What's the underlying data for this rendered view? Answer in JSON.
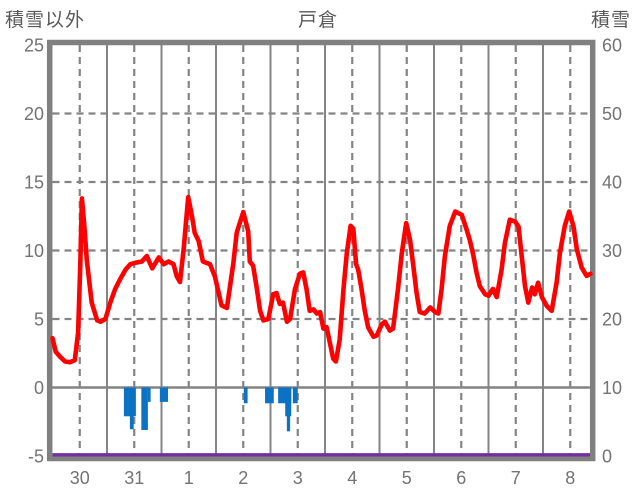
{
  "header": {
    "left_axis_title": "積雪以外",
    "title": "戸倉",
    "right_axis_title": "積雪"
  },
  "chart_data": {
    "type": "line",
    "title": "戸倉",
    "left_axis": {
      "label": "積雪以外",
      "range": [
        -5,
        25
      ],
      "ticks": [
        "25",
        "20",
        "15",
        "10",
        "5",
        "0",
        "-5"
      ]
    },
    "right_axis": {
      "label": "積雪",
      "range": [
        0,
        60
      ],
      "ticks": [
        "60",
        "50",
        "40",
        "30",
        "20",
        "10",
        "0"
      ]
    },
    "x_axis": {
      "tick_labels": [
        "30",
        "31",
        "1",
        "2",
        "3",
        "4",
        "5",
        "6",
        "7",
        "8"
      ],
      "days_visible": 9.87,
      "grid": "solid line at each day start, dashed line at each midday"
    },
    "grid": {
      "h_dashed_at": [
        20,
        15,
        10,
        5
      ],
      "h_solid_at": [
        0
      ],
      "color": "#848484"
    },
    "colors": {
      "red_line": "#fe0000",
      "blue_bars": "#0b72c4",
      "purple_line": "#7030a0",
      "frame": "#808080",
      "text": "#737373"
    },
    "series": [
      {
        "name": "red_line",
        "type": "line",
        "axis": "left",
        "color": "#fe0000",
        "points": [
          [
            0.0,
            3.6
          ],
          [
            0.06,
            2.6
          ],
          [
            0.14,
            2.25
          ],
          [
            0.23,
            1.9
          ],
          [
            0.32,
            1.85
          ],
          [
            0.41,
            2.0
          ],
          [
            0.47,
            4.0
          ],
          [
            0.51,
            9.0
          ],
          [
            0.54,
            13.8
          ],
          [
            0.58,
            12.0
          ],
          [
            0.63,
            9.3
          ],
          [
            0.72,
            6.2
          ],
          [
            0.82,
            4.9
          ],
          [
            0.88,
            4.8
          ],
          [
            0.97,
            5.0
          ],
          [
            1.06,
            6.2
          ],
          [
            1.15,
            7.2
          ],
          [
            1.24,
            7.9
          ],
          [
            1.34,
            8.6
          ],
          [
            1.43,
            9.0
          ],
          [
            1.52,
            9.1
          ],
          [
            1.64,
            9.2
          ],
          [
            1.73,
            9.6
          ],
          [
            1.83,
            8.7
          ],
          [
            1.95,
            9.5
          ],
          [
            2.04,
            9.0
          ],
          [
            2.13,
            9.2
          ],
          [
            2.22,
            9.0
          ],
          [
            2.28,
            8.1
          ],
          [
            2.34,
            7.7
          ],
          [
            2.41,
            10.2
          ],
          [
            2.49,
            13.9
          ],
          [
            2.56,
            12.5
          ],
          [
            2.61,
            11.3
          ],
          [
            2.68,
            10.7
          ],
          [
            2.76,
            9.2
          ],
          [
            2.89,
            9.0
          ],
          [
            2.98,
            8.1
          ],
          [
            3.1,
            6.0
          ],
          [
            3.2,
            5.8
          ],
          [
            3.32,
            9.1
          ],
          [
            3.38,
            11.3
          ],
          [
            3.5,
            12.8
          ],
          [
            3.59,
            11.4
          ],
          [
            3.62,
            9.2
          ],
          [
            3.68,
            8.9
          ],
          [
            3.75,
            7.2
          ],
          [
            3.81,
            5.6
          ],
          [
            3.87,
            4.9
          ],
          [
            3.96,
            5.0
          ],
          [
            4.05,
            6.8
          ],
          [
            4.11,
            6.9
          ],
          [
            4.17,
            6.1
          ],
          [
            4.23,
            6.2
          ],
          [
            4.3,
            4.8
          ],
          [
            4.36,
            5.0
          ],
          [
            4.45,
            7.2
          ],
          [
            4.54,
            8.3
          ],
          [
            4.6,
            8.4
          ],
          [
            4.66,
            7.2
          ],
          [
            4.72,
            5.6
          ],
          [
            4.79,
            5.7
          ],
          [
            4.85,
            5.4
          ],
          [
            4.91,
            5.5
          ],
          [
            4.97,
            4.3
          ],
          [
            5.03,
            4.4
          ],
          [
            5.15,
            2.1
          ],
          [
            5.2,
            1.9
          ],
          [
            5.27,
            3.5
          ],
          [
            5.34,
            7.2
          ],
          [
            5.4,
            9.8
          ],
          [
            5.47,
            11.8
          ],
          [
            5.52,
            11.6
          ],
          [
            5.57,
            9.0
          ],
          [
            5.61,
            8.6
          ],
          [
            5.67,
            7.2
          ],
          [
            5.73,
            5.6
          ],
          [
            5.79,
            4.4
          ],
          [
            5.89,
            3.7
          ],
          [
            5.95,
            3.8
          ],
          [
            6.04,
            4.6
          ],
          [
            6.1,
            4.8
          ],
          [
            6.19,
            4.15
          ],
          [
            6.25,
            4.3
          ],
          [
            6.34,
            7.2
          ],
          [
            6.41,
            9.8
          ],
          [
            6.49,
            12.0
          ],
          [
            6.56,
            10.8
          ],
          [
            6.62,
            8.9
          ],
          [
            6.68,
            6.9
          ],
          [
            6.74,
            5.5
          ],
          [
            6.83,
            5.4
          ],
          [
            6.93,
            5.85
          ],
          [
            7.02,
            5.5
          ],
          [
            7.08,
            5.4
          ],
          [
            7.14,
            7.2
          ],
          [
            7.2,
            9.6
          ],
          [
            7.29,
            11.8
          ],
          [
            7.39,
            12.85
          ],
          [
            7.51,
            12.6
          ],
          [
            7.6,
            11.5
          ],
          [
            7.66,
            10.7
          ],
          [
            7.72,
            9.7
          ],
          [
            7.78,
            8.4
          ],
          [
            7.84,
            7.4
          ],
          [
            7.94,
            6.8
          ],
          [
            8.0,
            6.7
          ],
          [
            8.08,
            7.2
          ],
          [
            8.15,
            6.6
          ],
          [
            8.24,
            8.6
          ],
          [
            8.3,
            10.55
          ],
          [
            8.39,
            12.25
          ],
          [
            8.49,
            12.1
          ],
          [
            8.55,
            11.75
          ],
          [
            8.61,
            9.6
          ],
          [
            8.67,
            7.4
          ],
          [
            8.73,
            6.2
          ],
          [
            8.8,
            7.3
          ],
          [
            8.85,
            6.8
          ],
          [
            8.91,
            7.65
          ],
          [
            8.98,
            6.6
          ],
          [
            9.07,
            5.95
          ],
          [
            9.16,
            5.6
          ],
          [
            9.25,
            7.65
          ],
          [
            9.31,
            9.8
          ],
          [
            9.4,
            11.8
          ],
          [
            9.48,
            12.85
          ],
          [
            9.56,
            11.75
          ],
          [
            9.62,
            10.1
          ],
          [
            9.71,
            8.75
          ],
          [
            9.8,
            8.15
          ],
          [
            9.87,
            8.3
          ]
        ]
      },
      {
        "name": "blue_bars",
        "type": "bar",
        "axis": "left",
        "color": "#0b72c4",
        "bars": [
          [
            1.31,
            1.53,
            -2.1
          ],
          [
            1.42,
            1.49,
            -3.05
          ],
          [
            1.63,
            1.75,
            -3.1
          ],
          [
            1.75,
            1.8,
            -1.05
          ],
          [
            1.97,
            2.12,
            -1.05
          ],
          [
            3.51,
            3.58,
            -1.15
          ],
          [
            3.9,
            4.06,
            -1.15
          ],
          [
            4.14,
            4.38,
            -1.15
          ],
          [
            4.27,
            4.38,
            -2.1
          ],
          [
            4.3,
            4.36,
            -3.2
          ],
          [
            4.41,
            4.5,
            -1.15
          ]
        ]
      },
      {
        "name": "purple_line",
        "type": "line",
        "axis": "right",
        "color": "#7030a0",
        "constant_value_right_axis": 0
      }
    ]
  }
}
